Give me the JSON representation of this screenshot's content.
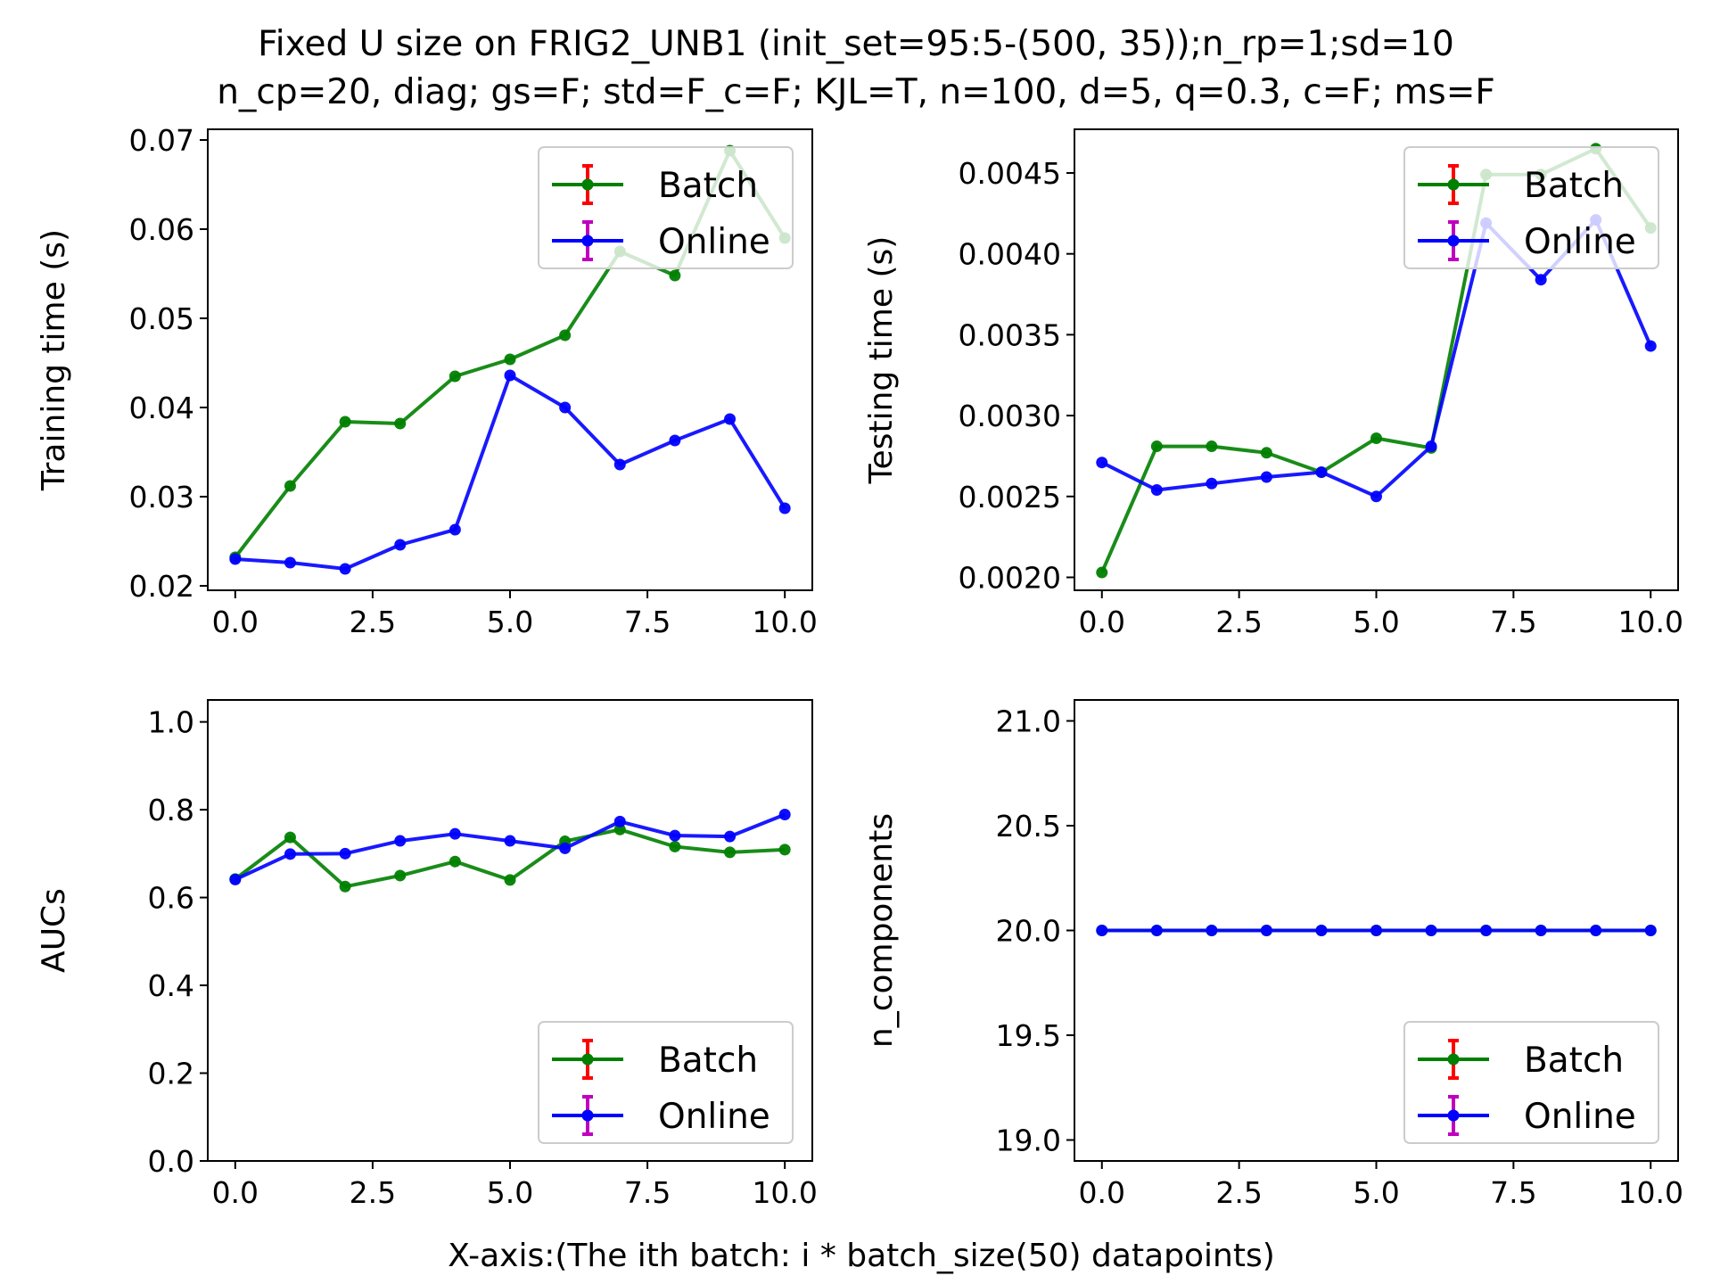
{
  "figure": {
    "title_lines": [
      "Fixed U size on FRIG2_UNB1 (init_set=95:5-(500, 35));n_rp=1;sd=10",
      "n_cp=20, diag; gs=F; std=F_c=F; KJL=T, n=100, d=5, q=0.3, c=F; ms=F"
    ],
    "xlabel": "X-axis:(The ith batch: i * batch_size(50) datapoints)"
  },
  "colors": {
    "batch": "#008000",
    "online": "#0000ff",
    "batch_errbar": "#ff0000",
    "online_errbar": "#bf00bf"
  },
  "chart_data": [
    {
      "type": "line",
      "title": "",
      "xlabel": "",
      "ylabel": "Training time (s)",
      "x": [
        0,
        1,
        2,
        3,
        4,
        5,
        6,
        7,
        8,
        9,
        10
      ],
      "xlim": [
        -0.5,
        10.5
      ],
      "xticks": [
        0.0,
        2.5,
        5.0,
        7.5,
        10.0
      ],
      "xtick_labels": [
        "0.0",
        "2.5",
        "5.0",
        "7.5",
        "10.0"
      ],
      "ylim": [
        0.0195,
        0.0712
      ],
      "yticks": [
        0.02,
        0.03,
        0.04,
        0.05,
        0.06,
        0.07
      ],
      "ytick_labels": [
        "0.02",
        "0.03",
        "0.04",
        "0.05",
        "0.06",
        "0.07"
      ],
      "legend_position": "upper right",
      "series": [
        {
          "name": "Batch",
          "values": [
            0.0232,
            0.0312,
            0.0384,
            0.0382,
            0.0435,
            0.0454,
            0.0481,
            0.0575,
            0.0548,
            0.0688,
            0.059
          ]
        },
        {
          "name": "Online",
          "values": [
            0.023,
            0.0226,
            0.0219,
            0.0246,
            0.0263,
            0.0436,
            0.04,
            0.0336,
            0.0363,
            0.0387,
            0.0287
          ]
        }
      ]
    },
    {
      "type": "line",
      "title": "",
      "xlabel": "",
      "ylabel": "Testing time (s)",
      "x": [
        0,
        1,
        2,
        3,
        4,
        5,
        6,
        7,
        8,
        9,
        10
      ],
      "xlim": [
        -0.5,
        10.5
      ],
      "xticks": [
        0.0,
        2.5,
        5.0,
        7.5,
        10.0
      ],
      "xtick_labels": [
        "0.0",
        "2.5",
        "5.0",
        "7.5",
        "10.0"
      ],
      "ylim": [
        0.00192,
        0.00477
      ],
      "yticks": [
        0.002,
        0.0025,
        0.003,
        0.0035,
        0.004,
        0.0045
      ],
      "ytick_labels": [
        "0.0020",
        "0.0025",
        "0.0030",
        "0.0035",
        "0.0040",
        "0.0045"
      ],
      "legend_position": "upper right",
      "series": [
        {
          "name": "Batch",
          "values": [
            0.00203,
            0.00281,
            0.00281,
            0.00277,
            0.00265,
            0.00286,
            0.0028,
            0.00449,
            0.00449,
            0.00465,
            0.00416
          ]
        },
        {
          "name": "Online",
          "values": [
            0.00271,
            0.00254,
            0.00258,
            0.00262,
            0.00265,
            0.0025,
            0.00281,
            0.00419,
            0.00384,
            0.00421,
            0.00343
          ]
        }
      ]
    },
    {
      "type": "line",
      "title": "",
      "xlabel": "",
      "ylabel": "AUCs",
      "x": [
        0,
        1,
        2,
        3,
        4,
        5,
        6,
        7,
        8,
        9,
        10
      ],
      "xlim": [
        -0.5,
        10.5
      ],
      "xticks": [
        0.0,
        2.5,
        5.0,
        7.5,
        10.0
      ],
      "xtick_labels": [
        "0.0",
        "2.5",
        "5.0",
        "7.5",
        "10.0"
      ],
      "ylim": [
        0.0,
        1.05
      ],
      "yticks": [
        0.0,
        0.2,
        0.4,
        0.6,
        0.8,
        1.0
      ],
      "ytick_labels": [
        "0.0",
        "0.2",
        "0.4",
        "0.6",
        "0.8",
        "1.0"
      ],
      "legend_position": "lower right",
      "series": [
        {
          "name": "Batch",
          "values": [
            0.642,
            0.737,
            0.625,
            0.65,
            0.682,
            0.64,
            0.728,
            0.755,
            0.716,
            0.703,
            0.709
          ]
        },
        {
          "name": "Online",
          "values": [
            0.641,
            0.699,
            0.7,
            0.729,
            0.745,
            0.729,
            0.712,
            0.773,
            0.741,
            0.739,
            0.789
          ]
        }
      ]
    },
    {
      "type": "line",
      "title": "",
      "xlabel": "",
      "ylabel": "n_components",
      "x": [
        0,
        1,
        2,
        3,
        4,
        5,
        6,
        7,
        8,
        9,
        10
      ],
      "xlim": [
        -0.5,
        10.5
      ],
      "xticks": [
        0.0,
        2.5,
        5.0,
        7.5,
        10.0
      ],
      "xtick_labels": [
        "0.0",
        "2.5",
        "5.0",
        "7.5",
        "10.0"
      ],
      "ylim": [
        18.9,
        21.1
      ],
      "yticks": [
        19.0,
        19.5,
        20.0,
        20.5,
        21.0
      ],
      "ytick_labels": [
        "19.0",
        "19.5",
        "20.0",
        "20.5",
        "21.0"
      ],
      "legend_position": "lower right",
      "series": [
        {
          "name": "Batch",
          "values": [
            20,
            20,
            20,
            20,
            20,
            20,
            20,
            20,
            20,
            20,
            20
          ]
        },
        {
          "name": "Online",
          "values": [
            20,
            20,
            20,
            20,
            20,
            20,
            20,
            20,
            20,
            20,
            20
          ]
        }
      ]
    }
  ]
}
